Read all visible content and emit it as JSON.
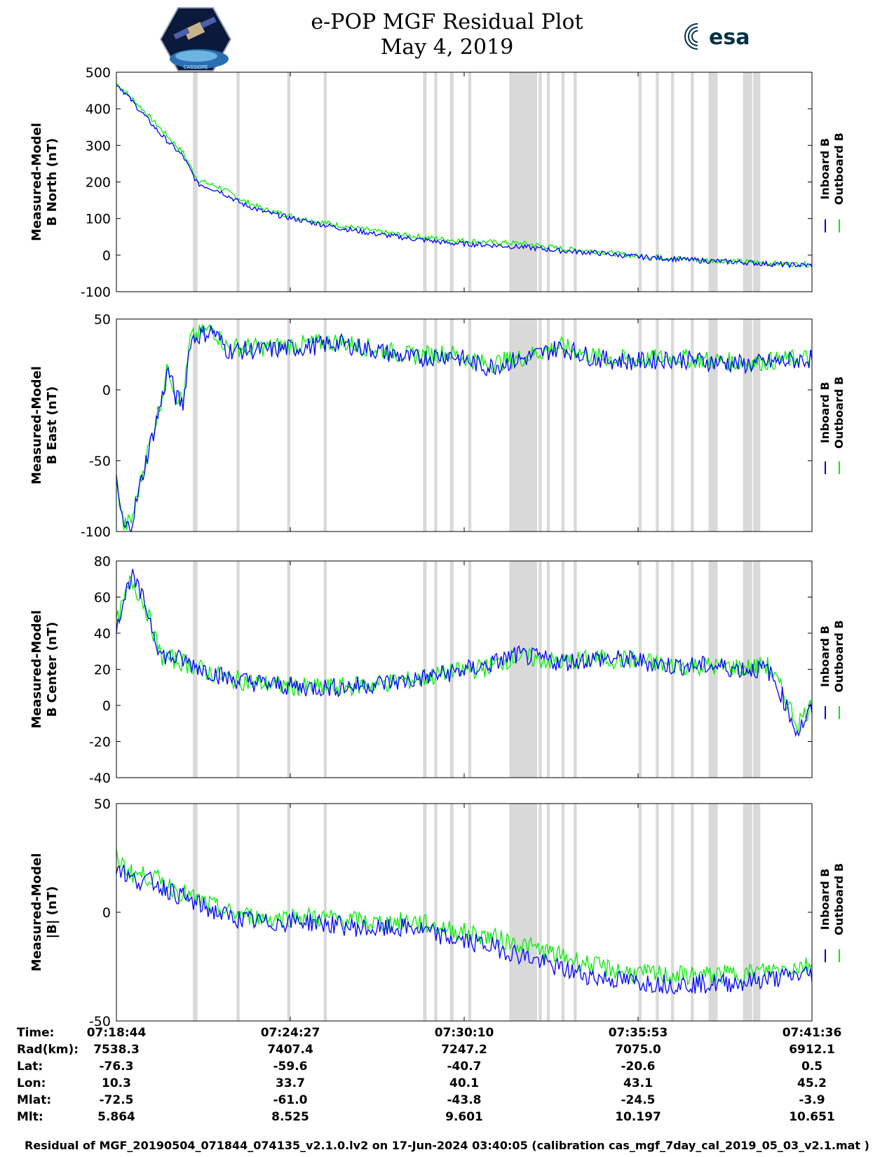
{
  "header": {
    "title_line1": "e-POP MGF Residual Plot",
    "title_line2": "May 4, 2019",
    "logo_left_label": "CASSIOPE",
    "logo_right_label": "esa"
  },
  "colors": {
    "inboard": "#0000ff",
    "outboard": "#00ee00",
    "shading": "#d9d9d9"
  },
  "chart_data": [
    {
      "type": "line",
      "ylabel": [
        "Measured-Model",
        "B North (nT)"
      ],
      "ylim": [
        -100,
        500
      ],
      "yticks": [
        "500",
        "400",
        "300",
        "200",
        "100",
        "0",
        "-100"
      ],
      "legend": [
        "Inboard B",
        "Outboard B"
      ],
      "legend_position": "right",
      "x": [
        0,
        30,
        60,
        90,
        110,
        140,
        170,
        200,
        250,
        300,
        350,
        400,
        450,
        500,
        550,
        600,
        650,
        700,
        750,
        800,
        850,
        900,
        940
      ],
      "series": [
        {
          "name": "Inboard B",
          "values": [
            470,
            400,
            330,
            270,
            195,
            175,
            140,
            118,
            95,
            75,
            58,
            45,
            33,
            28,
            22,
            12,
            6,
            -4,
            -10,
            -16,
            -20,
            -26,
            -28
          ]
        },
        {
          "name": "Outboard B",
          "values": [
            470,
            410,
            345,
            280,
            205,
            185,
            150,
            125,
            100,
            82,
            65,
            52,
            42,
            36,
            32,
            18,
            10,
            -2,
            -8,
            -14,
            -18,
            -24,
            -26
          ]
        }
      ]
    },
    {
      "type": "line",
      "ylabel": [
        "Measured-Model",
        "B East (nT)"
      ],
      "ylim": [
        -100,
        50
      ],
      "yticks": [
        "50",
        "0",
        "-50",
        "-100"
      ],
      "legend": [
        "Inboard B",
        "Outboard B"
      ],
      "legend_position": "right",
      "x": [
        0,
        10,
        20,
        40,
        60,
        70,
        80,
        90,
        100,
        110,
        130,
        150,
        200,
        250,
        300,
        350,
        400,
        450,
        500,
        550,
        600,
        650,
        700,
        750,
        800,
        850,
        900,
        940
      ],
      "series": [
        {
          "name": "Inboard B",
          "values": [
            -65,
            -98,
            -95,
            -50,
            -10,
            15,
            -5,
            -10,
            35,
            38,
            42,
            28,
            28,
            30,
            33,
            28,
            22,
            25,
            16,
            22,
            30,
            22,
            20,
            22,
            20,
            18,
            20,
            22
          ]
        },
        {
          "name": "Outboard B",
          "values": [
            -65,
            -96,
            -93,
            -48,
            -8,
            17,
            -3,
            -8,
            36,
            39,
            43,
            30,
            30,
            32,
            34,
            29,
            24,
            26,
            18,
            23,
            31,
            23,
            21,
            23,
            21,
            19,
            21,
            23
          ]
        }
      ]
    },
    {
      "type": "line",
      "ylabel": [
        "Measured-Model",
        "B Center (nT)"
      ],
      "ylim": [
        -40,
        80
      ],
      "yticks": [
        "80",
        "60",
        "40",
        "20",
        "0",
        "-20",
        "-40"
      ],
      "legend": [
        "Inboard B",
        "Outboard B"
      ],
      "legend_position": "right",
      "x": [
        0,
        20,
        40,
        60,
        90,
        120,
        150,
        200,
        250,
        300,
        350,
        400,
        450,
        500,
        540,
        600,
        650,
        700,
        750,
        800,
        850,
        880,
        900,
        920,
        940
      ],
      "series": [
        {
          "name": "Inboard B",
          "values": [
            45,
            72,
            55,
            28,
            25,
            20,
            15,
            12,
            10,
            10,
            12,
            14,
            18,
            22,
            28,
            24,
            26,
            25,
            22,
            22,
            20,
            20,
            5,
            -15,
            -2
          ]
        },
        {
          "name": "Outboard B",
          "values": [
            45,
            70,
            54,
            27,
            24,
            19,
            15,
            12,
            10,
            10,
            12,
            14,
            18,
            21,
            27,
            24,
            26,
            25,
            22,
            22,
            21,
            22,
            8,
            -10,
            0
          ]
        }
      ]
    },
    {
      "type": "line",
      "ylabel": [
        "Measured-Model",
        "|B| (nT)"
      ],
      "ylim": [
        -50,
        50
      ],
      "yticks": [
        "50",
        "0",
        "-50"
      ],
      "legend": [
        "Inboard B",
        "Outboard B"
      ],
      "legend_position": "right",
      "x": [
        0,
        20,
        50,
        100,
        150,
        200,
        250,
        300,
        350,
        400,
        450,
        500,
        550,
        600,
        650,
        700,
        750,
        800,
        850,
        900,
        940
      ],
      "series": [
        {
          "name": "Inboard B",
          "values": [
            22,
            15,
            14,
            5,
            -2,
            -5,
            -4,
            -6,
            -8,
            -7,
            -12,
            -15,
            -20,
            -26,
            -30,
            -32,
            -33,
            -33,
            -32,
            -30,
            -28
          ]
        },
        {
          "name": "Outboard B",
          "values": [
            25,
            18,
            16,
            7,
            0,
            -3,
            -2,
            -3,
            -5,
            -4,
            -8,
            -11,
            -15,
            -20,
            -25,
            -28,
            -29,
            -29,
            -28,
            -26,
            -24
          ]
        }
      ]
    }
  ],
  "x_axis": {
    "range_seconds": [
      0,
      1372
    ],
    "tick_seconds": [
      0,
      343,
      686,
      1029,
      1372
    ],
    "shaded_intervals_seconds": [
      [
        151,
        160
      ],
      [
        237,
        243
      ],
      [
        337,
        343
      ],
      [
        409,
        415
      ],
      [
        605,
        612
      ],
      [
        627,
        633
      ],
      [
        658,
        665
      ],
      [
        694,
        700
      ],
      [
        775,
        830
      ],
      [
        833,
        839
      ],
      [
        849,
        855
      ],
      [
        878,
        884
      ],
      [
        902,
        908
      ],
      [
        1030,
        1036
      ],
      [
        1064,
        1070
      ],
      [
        1094,
        1100
      ],
      [
        1133,
        1139
      ],
      [
        1168,
        1186
      ],
      [
        1236,
        1254
      ],
      [
        1256,
        1270
      ]
    ]
  },
  "info_table": {
    "rows": [
      {
        "label": "Time:",
        "values": [
          "07:18:44",
          "07:24:27",
          "07:30:10",
          "07:35:53",
          "07:41:36"
        ]
      },
      {
        "label": "Rad(km):",
        "values": [
          "7538.3",
          "7407.4",
          "7247.2",
          "7075.0",
          "6912.1"
        ]
      },
      {
        "label": "Lat:",
        "values": [
          "-76.3",
          "-59.6",
          "-40.7",
          "-20.6",
          "0.5"
        ]
      },
      {
        "label": "Lon:",
        "values": [
          "10.3",
          "33.7",
          "40.1",
          "43.1",
          "45.2"
        ]
      },
      {
        "label": "Mlat:",
        "values": [
          "-72.5",
          "-61.0",
          "-43.8",
          "-24.5",
          "-3.9"
        ]
      },
      {
        "label": "Mlt:",
        "values": [
          "5.864",
          "8.525",
          "9.601",
          "10.197",
          "10.651"
        ]
      }
    ]
  },
  "footer": "Residual of MGF_20190504_071844_074135_v2.1.0.lv2 on 17-Jun-2024 03:40:05 (calibration cas_mgf_7day_cal_2019_05_03_v2.1.mat )"
}
